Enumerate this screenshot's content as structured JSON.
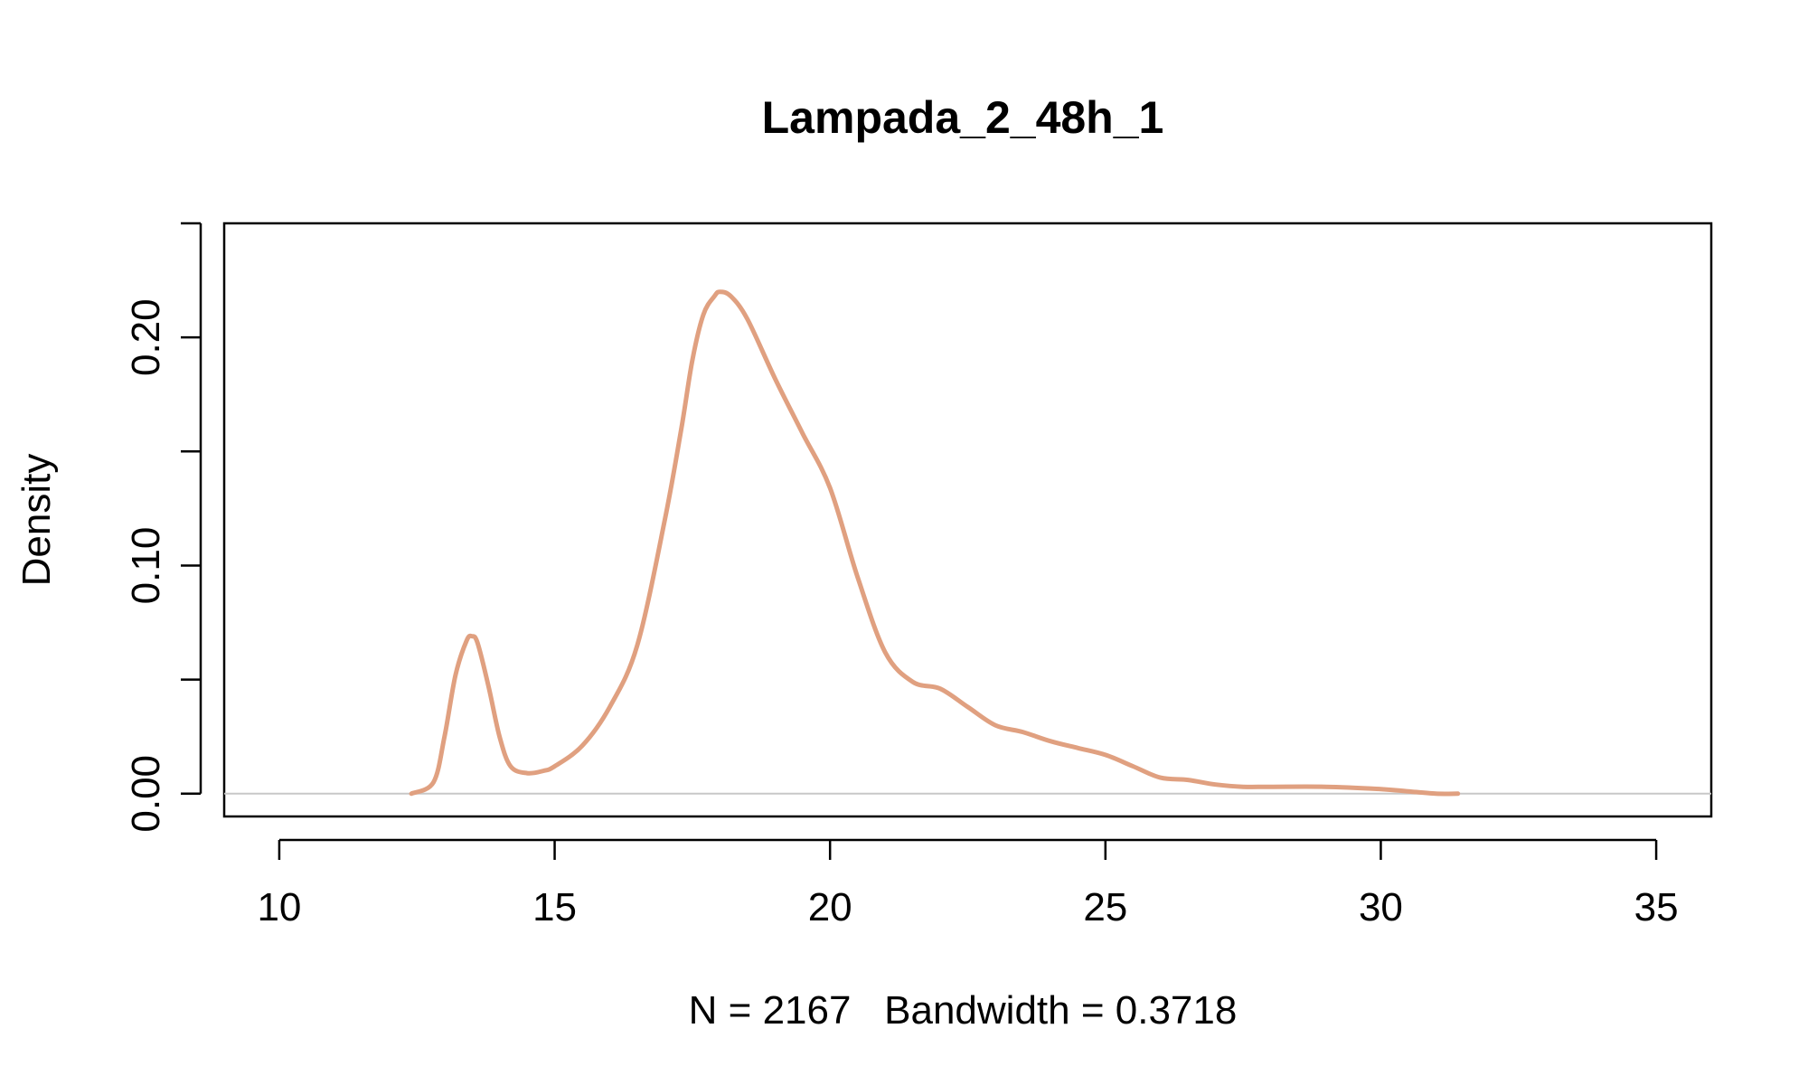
{
  "chart_data": {
    "type": "line",
    "title": "Lampada_2_48h_1",
    "xlabel": "N = 2167   Bandwidth = 0.3718",
    "ylabel": "Density",
    "xlim": [
      9,
      36
    ],
    "ylim": [
      -0.01,
      0.25
    ],
    "x_ticks": [
      10,
      15,
      20,
      25,
      30,
      35
    ],
    "x_tick_labels": [
      "10",
      "15",
      "20",
      "25",
      "30",
      "35"
    ],
    "y_ticks": [
      0.0,
      0.05,
      0.1,
      0.15,
      0.2,
      0.25
    ],
    "y_tick_labels": [
      "0.00",
      "",
      "0.10",
      "",
      "0.20",
      ""
    ],
    "grid": false,
    "baseline_y": 0,
    "colors": {
      "curve": "#E0A080",
      "baseline": "#c8c8c8",
      "axis": "#000000"
    },
    "series": [
      {
        "x": [
          12.4,
          12.8,
          13.0,
          13.2,
          13.4,
          13.5,
          13.6,
          13.8,
          14.0,
          14.2,
          14.5,
          14.8,
          15.0,
          15.5,
          16.0,
          16.5,
          17.0,
          17.3,
          17.5,
          17.7,
          17.9,
          18.0,
          18.2,
          18.5,
          19.0,
          19.5,
          20.0,
          20.5,
          21.0,
          21.5,
          22.0,
          22.5,
          23.0,
          23.5,
          24.0,
          24.5,
          25.0,
          25.5,
          26.0,
          26.5,
          27.0,
          27.5,
          28.0,
          29.0,
          30.0,
          30.5,
          31.0,
          31.4
        ],
        "y": [
          0.0,
          0.005,
          0.025,
          0.052,
          0.067,
          0.069,
          0.066,
          0.047,
          0.025,
          0.012,
          0.009,
          0.01,
          0.012,
          0.021,
          0.038,
          0.065,
          0.12,
          0.16,
          0.19,
          0.21,
          0.218,
          0.22,
          0.218,
          0.208,
          0.182,
          0.158,
          0.134,
          0.095,
          0.062,
          0.049,
          0.046,
          0.038,
          0.03,
          0.027,
          0.023,
          0.02,
          0.017,
          0.012,
          0.007,
          0.006,
          0.004,
          0.003,
          0.003,
          0.003,
          0.002,
          0.001,
          0.0,
          0.0
        ]
      }
    ]
  }
}
